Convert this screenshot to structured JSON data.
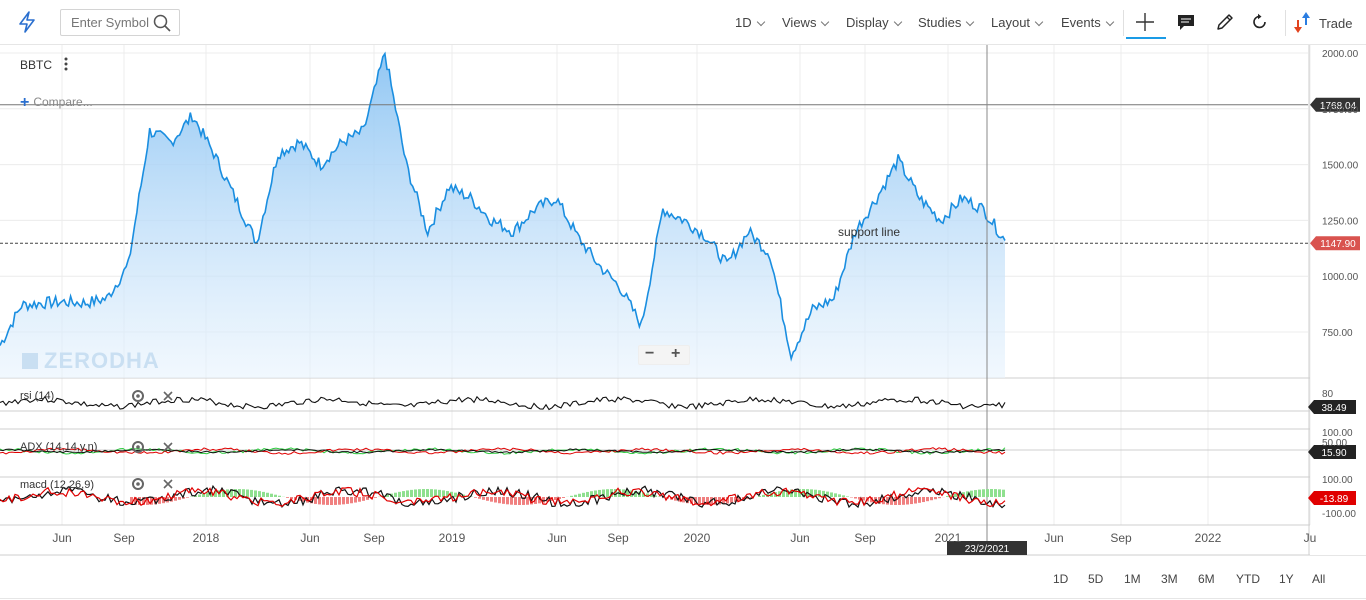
{
  "toolbar": {
    "symbol_placeholder": "Enter Symbol",
    "menus": [
      "1D",
      "Views",
      "Display",
      "Studies",
      "Layout",
      "Events"
    ],
    "trade_label": "Trade"
  },
  "chart": {
    "symbol": "BBTC",
    "compare_label": "Compare...",
    "watermark": "ZERODHA",
    "annotation": "support line",
    "crosshair_date": "23/2/2021",
    "zoom_minus": "−",
    "zoom_plus": "+"
  },
  "indicators": {
    "rsi": {
      "label": "rsi (14)",
      "value": "38.49"
    },
    "adx": {
      "label": "ADX (14,14,y,n)",
      "value": "15.90"
    },
    "macd": {
      "label": "macd (12,26,9)",
      "value": "-13.89"
    }
  },
  "range_buttons": [
    "1D",
    "5D",
    "1M",
    "3M",
    "6M",
    "YTD",
    "1Y",
    "All"
  ],
  "colors": {
    "price_line": "#1a8ee0",
    "accent": "#1a9be6",
    "price_badge": "#d9534f",
    "dark_badge": "#222222",
    "macd_badge": "#e00000"
  },
  "chart_data": {
    "type": "area",
    "symbol": "BBTC",
    "x_ticks": [
      "Jun",
      "Sep",
      "2018",
      "Jun",
      "Sep",
      "2019",
      "Jun",
      "Sep",
      "2020",
      "Jun",
      "Sep",
      "2021",
      "Jun",
      "Sep",
      "2022",
      "Ju"
    ],
    "y_ticks": [
      "2000.00",
      "1750.00",
      "1500.00",
      "1250.00",
      "1000.00",
      "750.00"
    ],
    "ylim": [
      600,
      2020
    ],
    "horizontal_lines": [
      {
        "value": 1768.04,
        "label": "1768.04"
      },
      {
        "value": 1147.9,
        "label": "1147.90",
        "name": "support line"
      }
    ],
    "current_price": "1147.90",
    "series": [
      {
        "x": [
          "2017-03",
          "2017-04",
          "2017-05",
          "2017-06",
          "2017-07",
          "2017-08",
          "2017-09",
          "2017-10",
          "2017-11",
          "2017-12",
          "2018-01",
          "2018-02",
          "2018-03",
          "2018-04",
          "2018-05",
          "2018-06",
          "2018-07",
          "2018-08",
          "2018-09",
          "2018-10",
          "2018-11",
          "2018-12",
          "2019-01",
          "2019-02",
          "2019-03",
          "2019-04",
          "2019-05",
          "2019-06",
          "2019-07",
          "2019-08",
          "2019-09",
          "2019-10",
          "2019-11",
          "2019-12",
          "2020-01",
          "2020-02",
          "2020-03",
          "2020-04",
          "2020-05",
          "2020-06",
          "2020-07",
          "2020-08",
          "2020-09",
          "2020-10",
          "2020-11",
          "2020-12",
          "2021-01",
          "2021-02"
        ],
        "values": [
          690,
          870,
          880,
          885,
          880,
          900,
          1050,
          1650,
          1600,
          1720,
          1550,
          1350,
          1150,
          1550,
          1600,
          1500,
          1600,
          1650,
          2000,
          1500,
          1200,
          1400,
          1350,
          1250,
          1200,
          1300,
          1350,
          1180,
          1050,
          950,
          780,
          1300,
          1250,
          1180,
          1050,
          1200,
          1100,
          650,
          850,
          900,
          1200,
          1350,
          1520,
          1350,
          1250,
          1350,
          1300,
          1160
        ]
      }
    ]
  },
  "rsi_ticks": [
    "80"
  ],
  "adx_ticks": [
    "100.00",
    "50.00"
  ],
  "macd_ticks": [
    "100.00",
    "-100.00"
  ]
}
